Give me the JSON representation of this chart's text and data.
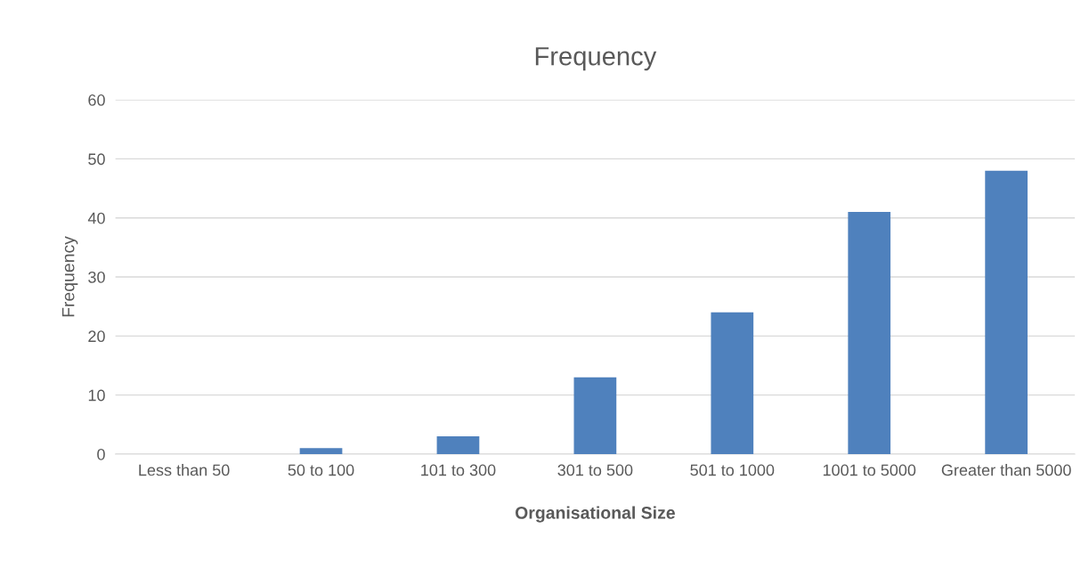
{
  "chart_data": {
    "type": "bar",
    "title": "Frequency",
    "xlabel": "Organisational Size",
    "ylabel": "Frequency",
    "categories": [
      "Less than 50",
      "50 to 100",
      "101 to 300",
      "301 to 500",
      "501 to 1000",
      "1001 to 5000",
      "Greater than 5000"
    ],
    "values": [
      0,
      1,
      3,
      13,
      24,
      41,
      48
    ],
    "color": "#4f81bd",
    "ylim": [
      0,
      60
    ],
    "yticks": [
      0,
      10,
      20,
      30,
      40,
      50,
      60
    ],
    "grid": "y",
    "legend": false
  }
}
